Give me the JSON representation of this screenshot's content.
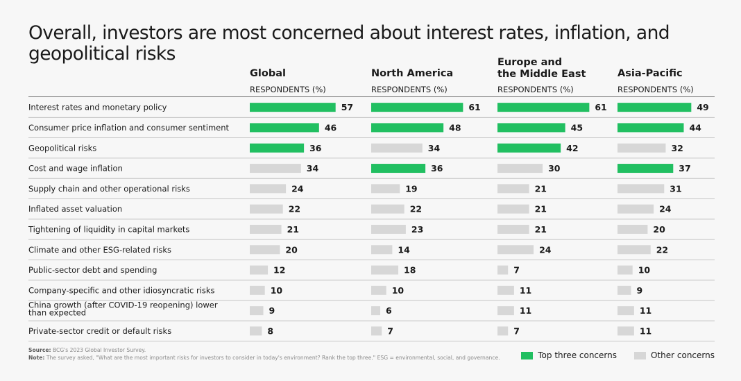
{
  "title": "Overall, investors are most concerned about interest rates, inflation, and geopolitical risks",
  "colors": {
    "top": "#21bf61",
    "other": "#d7d7d7",
    "rule": "#b5b5b5"
  },
  "chart_data": {
    "type": "bar",
    "orientation": "horizontal",
    "column_subheading": "RESPONDENTS (%)",
    "categories": [
      "Interest rates and monetary policy",
      "Consumer price inflation and consumer sentiment",
      "Geopolitical risks",
      "Cost and wage inflation",
      "Supply chain and other operational risks",
      "Inflated asset valuation",
      "Tightening of liquidity in capital markets",
      "Climate and other ESG-related risks",
      "Public-sector debt and spending",
      "Company-specific and other idiosyncratic risks",
      "China growth (after COVID-19 reopening) lower than expected",
      "Private-sector credit or default risks"
    ],
    "series": [
      {
        "name": "Global",
        "values": [
          57,
          46,
          36,
          34,
          24,
          22,
          21,
          20,
          12,
          10,
          9,
          8
        ],
        "top_three": [
          0,
          1,
          2
        ]
      },
      {
        "name": "North America",
        "values": [
          61,
          48,
          34,
          36,
          19,
          22,
          23,
          14,
          18,
          10,
          6,
          7
        ],
        "top_three": [
          0,
          1,
          3
        ]
      },
      {
        "name": "Europe and the Middle East",
        "values": [
          61,
          45,
          42,
          30,
          21,
          21,
          21,
          24,
          7,
          11,
          11,
          7
        ],
        "top_three": [
          0,
          1,
          2
        ]
      },
      {
        "name": "Asia-Pacific",
        "values": [
          49,
          44,
          32,
          37,
          31,
          24,
          20,
          22,
          10,
          9,
          11,
          11
        ],
        "top_three": [
          0,
          1,
          3
        ]
      }
    ],
    "legend": [
      {
        "label": "Top three concerns",
        "color": "#21bf61"
      },
      {
        "label": "Other concerns",
        "color": "#d7d7d7"
      }
    ],
    "legend_position": "bottom-right",
    "grid": false
  },
  "footer": {
    "source_label": "Source:",
    "source_text": "BCG's 2023 Global Investor Survey.",
    "note_label": "Note:",
    "note_text": "The survey asked, \"What are the most important risks for investors to consider in today's environment? Rank the top three.\" ESG = environmental, social, and governance."
  }
}
